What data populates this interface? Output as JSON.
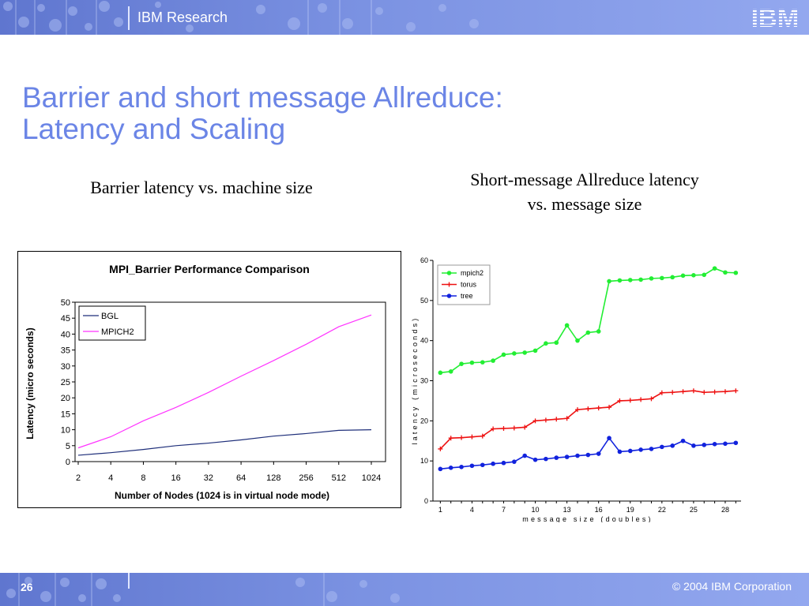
{
  "header": {
    "brand": "IBM Research",
    "logo": "IBM"
  },
  "title": {
    "line1": "Barrier and short message Allreduce:",
    "line2": "Latency and Scaling"
  },
  "captions": {
    "left": "Barrier latency vs. machine size",
    "right_line1": "Short-message Allreduce latency",
    "right_line2": "vs. message size"
  },
  "footer": {
    "page_number": "26",
    "copyright": "© 2004 IBM Corporation"
  },
  "colors": {
    "title": "#6b85e6",
    "band": "#7b92e2",
    "bgl": "#1f2f7a",
    "mpich2_left": "#ff33ff",
    "mpich2_right": "#22ee33",
    "torus": "#ee1111",
    "tree": "#1122dd"
  },
  "chart_data": [
    {
      "type": "line",
      "title": "MPI_Barrier Performance Comparison",
      "xlabel": "Number of Nodes (1024 is in virtual node mode)",
      "ylabel": "Latency (micro seconds)",
      "categories": [
        "2",
        "4",
        "8",
        "16",
        "32",
        "64",
        "128",
        "256",
        "512",
        "1024"
      ],
      "ylim": [
        0,
        50
      ],
      "yticks": [
        0,
        5,
        10,
        15,
        20,
        25,
        30,
        35,
        40,
        45,
        50
      ],
      "legend": "top-left",
      "grid": false,
      "series": [
        {
          "name": "BGL",
          "values": [
            2.0,
            2.8,
            3.8,
            5.0,
            5.8,
            6.8,
            8.0,
            8.8,
            9.8,
            10.0
          ]
        },
        {
          "name": "MPICH2",
          "values": [
            4.3,
            7.8,
            12.8,
            17.0,
            21.7,
            26.8,
            31.7,
            36.8,
            42.3,
            46.0
          ]
        }
      ]
    },
    {
      "type": "line",
      "title": "",
      "xlabel": "message size (doubles)",
      "ylabel": "latency (microseconds)",
      "x": [
        1,
        2,
        3,
        4,
        5,
        6,
        7,
        8,
        9,
        10,
        11,
        12,
        13,
        14,
        15,
        16,
        17,
        18,
        19,
        20,
        21,
        22,
        23,
        24,
        25,
        26,
        27,
        28,
        29
      ],
      "xticks": [
        1,
        4,
        7,
        10,
        13,
        16,
        19,
        22,
        25,
        28
      ],
      "ylim": [
        0,
        60
      ],
      "yticks": [
        0,
        10,
        20,
        30,
        40,
        50,
        60
      ],
      "legend": "top-left",
      "grid": false,
      "series": [
        {
          "name": "mpich2",
          "values": [
            32.0,
            32.3,
            34.2,
            34.5,
            34.6,
            35.0,
            36.5,
            36.8,
            37.0,
            37.5,
            39.3,
            39.5,
            43.8,
            40.0,
            42.0,
            42.3,
            54.8,
            55.0,
            55.1,
            55.2,
            55.5,
            55.6,
            55.8,
            56.2,
            56.3,
            56.4,
            58.0,
            57.0,
            56.9
          ]
        },
        {
          "name": "torus",
          "values": [
            13.0,
            15.7,
            15.8,
            16.0,
            16.2,
            18.0,
            18.1,
            18.2,
            18.4,
            20.0,
            20.2,
            20.4,
            20.6,
            22.8,
            23.0,
            23.2,
            23.4,
            25.0,
            25.1,
            25.3,
            25.5,
            27.0,
            27.1,
            27.3,
            27.5,
            27.1,
            27.2,
            27.3,
            27.5
          ]
        },
        {
          "name": "tree",
          "values": [
            8.0,
            8.3,
            8.5,
            8.8,
            9.0,
            9.3,
            9.5,
            9.8,
            11.3,
            10.3,
            10.5,
            10.8,
            11.0,
            11.3,
            11.5,
            11.8,
            15.7,
            12.3,
            12.5,
            12.8,
            13.0,
            13.5,
            13.8,
            15.0,
            13.8,
            14.0,
            14.2,
            14.3,
            14.5
          ]
        }
      ]
    }
  ]
}
